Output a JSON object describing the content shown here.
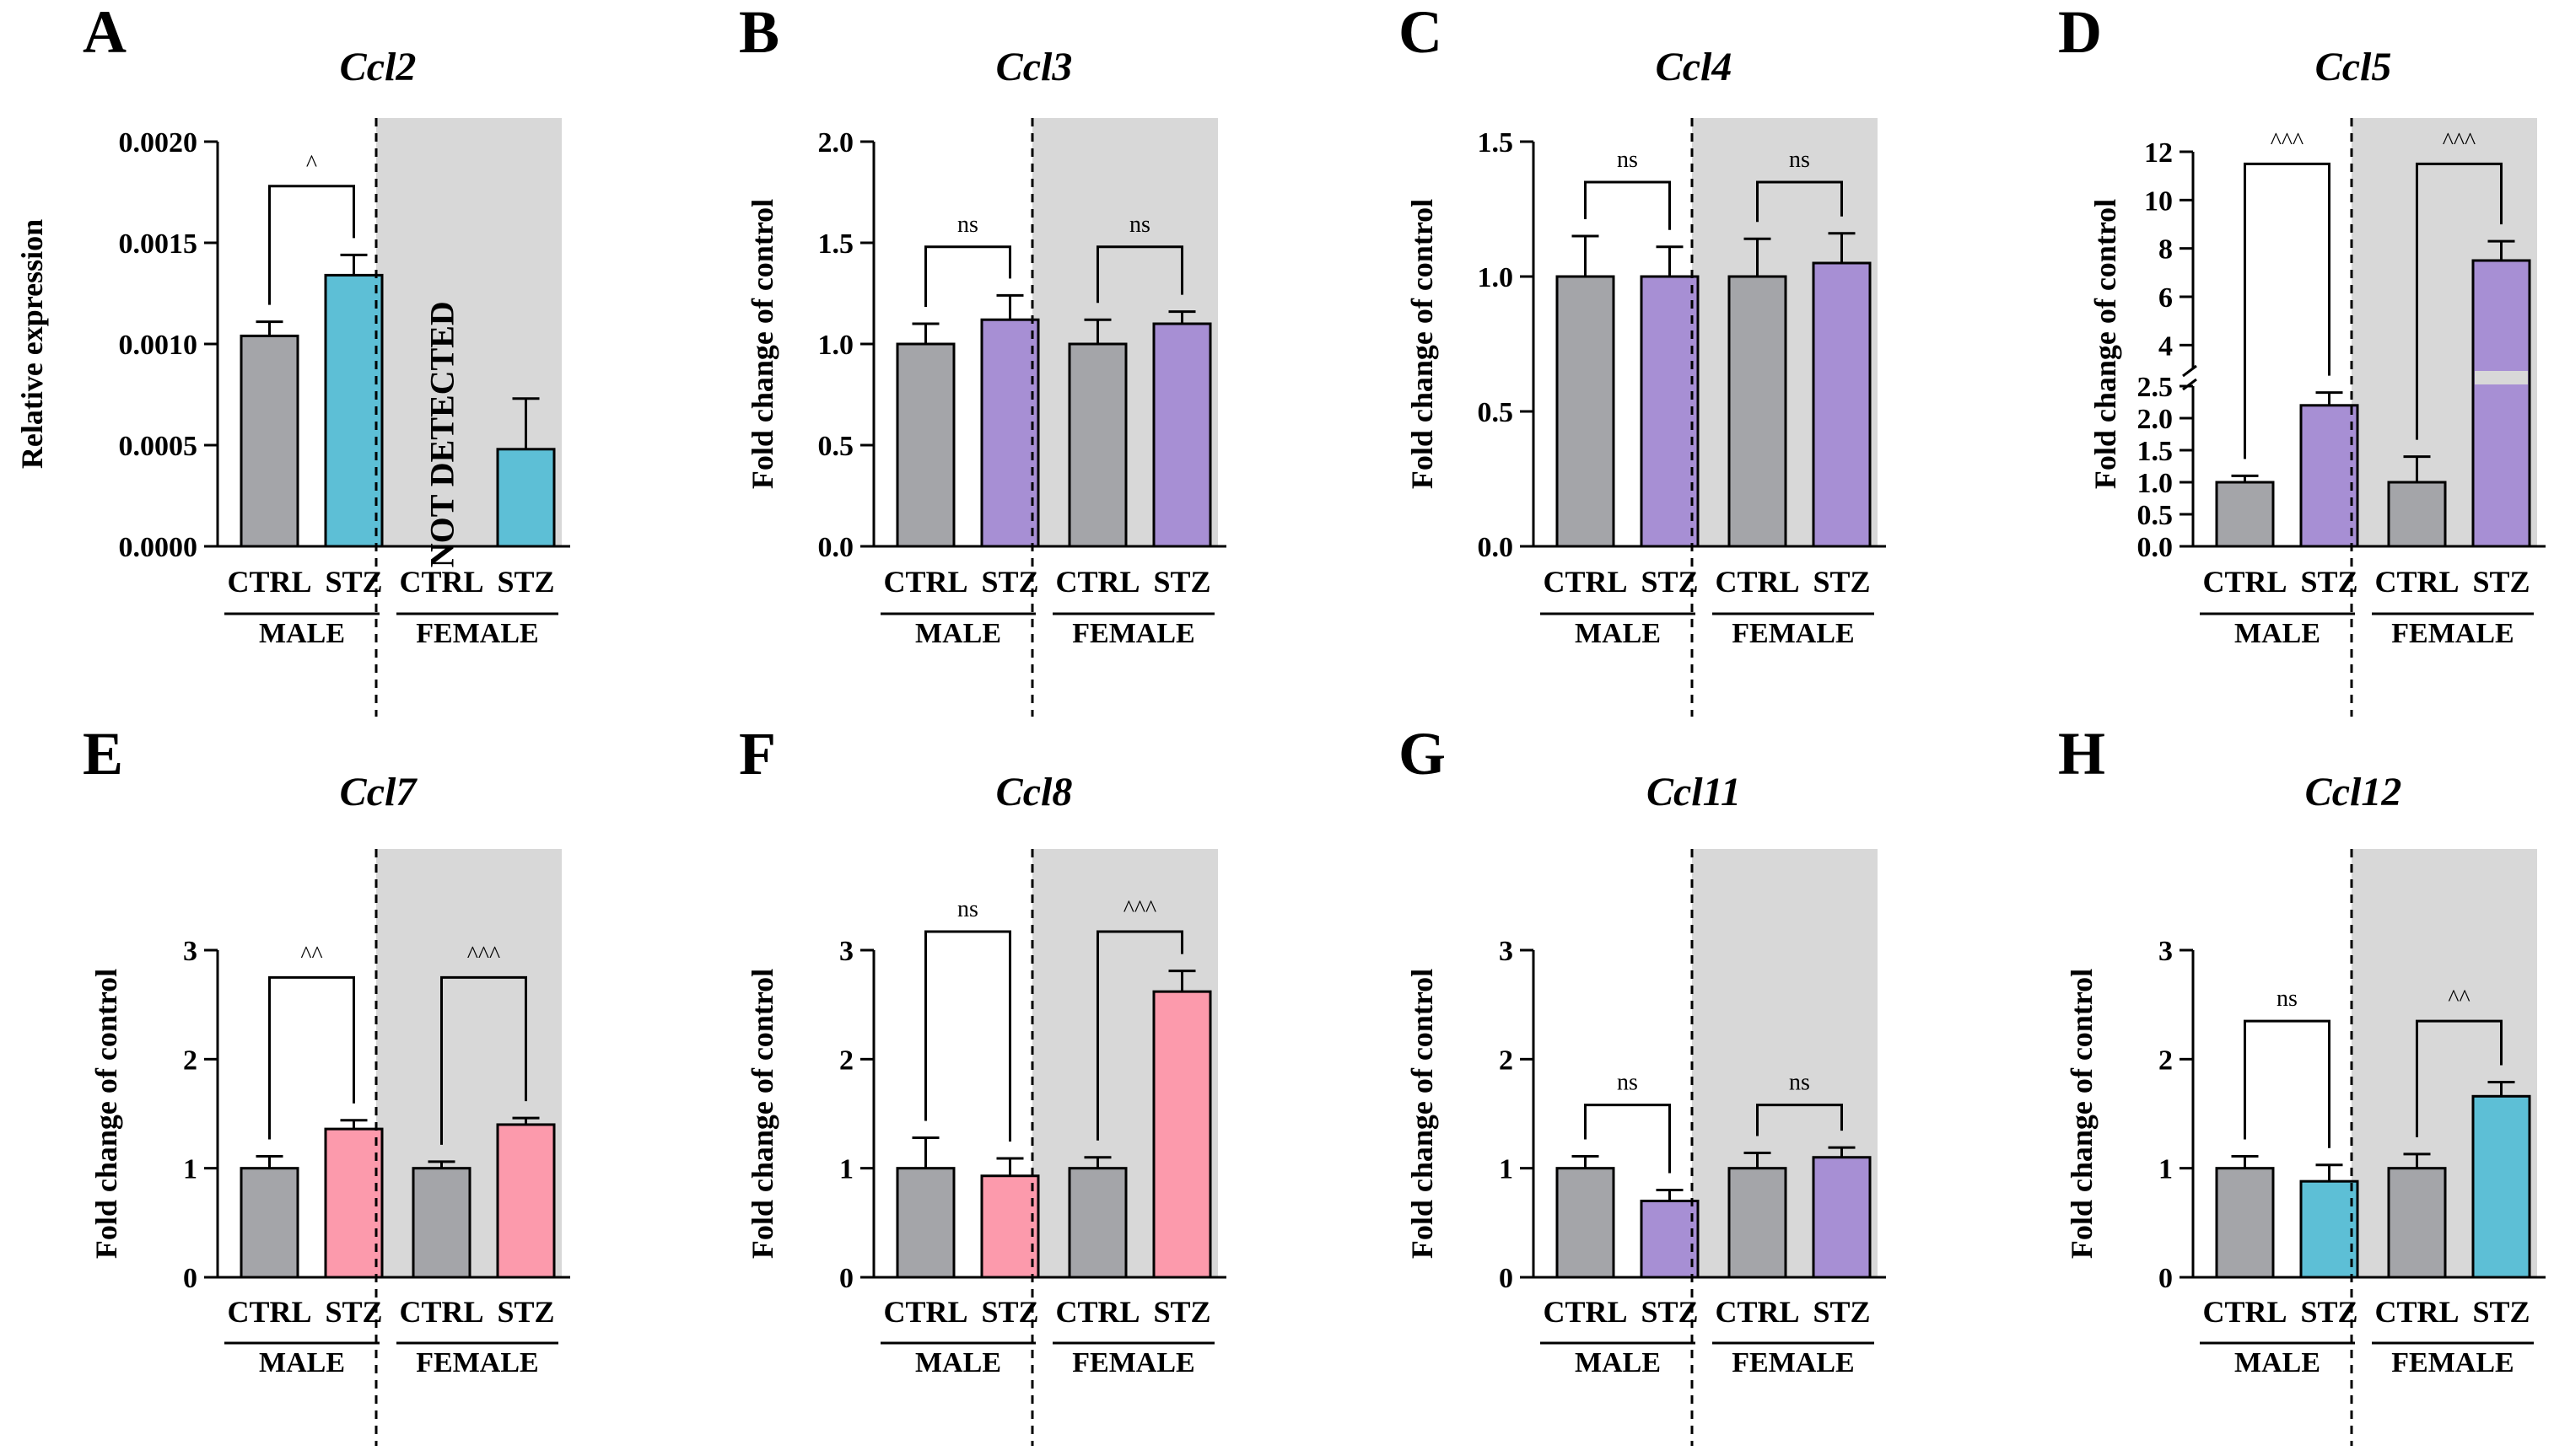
{
  "figure": {
    "colors": {
      "ctrl": "#a4a5a9",
      "cyan": "#5dbfd6",
      "purple": "#a78fd4",
      "pink": "#fc9aac",
      "shade": "#d8d8d8"
    }
  },
  "chart_data": [
    {
      "panel": "A",
      "title": "Ccl2",
      "type": "bar",
      "ylabel": "Relative expression",
      "ylim": [
        0,
        0.002
      ],
      "yticks": [
        "0.0000",
        "0.0005",
        "0.0010",
        "0.0015",
        "0.0020"
      ],
      "categories": [
        "CTRL",
        "STZ",
        "CTRL",
        "STZ"
      ],
      "groups": [
        "MALE",
        "FEMALE"
      ],
      "values": [
        0.00104,
        0.00134,
        null,
        0.00048
      ],
      "errors": [
        7e-05,
        0.0001,
        null,
        0.00025
      ],
      "bar_colors": [
        "ctrl",
        "cyan",
        "ctrl",
        "cyan"
      ],
      "annotation": "NOT DETECTED",
      "comparisons": [
        {
          "label": "^",
          "pair": [
            0,
            1
          ],
          "level": 0.00178
        }
      ]
    },
    {
      "panel": "B",
      "title": "Ccl3",
      "type": "bar",
      "ylabel": "Fold change of control",
      "ylim": [
        0,
        2.0
      ],
      "yticks": [
        "0.0",
        "0.5",
        "1.0",
        "1.5",
        "2.0"
      ],
      "categories": [
        "CTRL",
        "STZ",
        "CTRL",
        "STZ"
      ],
      "groups": [
        "MALE",
        "FEMALE"
      ],
      "values": [
        1.0,
        1.12,
        1.0,
        1.1
      ],
      "errors": [
        0.1,
        0.12,
        0.12,
        0.06
      ],
      "bar_colors": [
        "ctrl",
        "purple",
        "ctrl",
        "purple"
      ],
      "comparisons": [
        {
          "label": "ns",
          "pair": [
            0,
            1
          ],
          "level": 1.48
        },
        {
          "label": "ns",
          "pair": [
            2,
            3
          ],
          "level": 1.48
        }
      ]
    },
    {
      "panel": "C",
      "title": "Ccl4",
      "type": "bar",
      "ylabel": "Fold change of control",
      "ylim": [
        0,
        1.5
      ],
      "yticks": [
        "0.0",
        "0.5",
        "1.0",
        "1.5"
      ],
      "categories": [
        "CTRL",
        "STZ",
        "CTRL",
        "STZ"
      ],
      "groups": [
        "MALE",
        "FEMALE"
      ],
      "values": [
        1.0,
        1.0,
        1.0,
        1.05
      ],
      "errors": [
        0.15,
        0.11,
        0.14,
        0.11
      ],
      "bar_colors": [
        "ctrl",
        "purple",
        "ctrl",
        "purple"
      ],
      "comparisons": [
        {
          "label": "ns",
          "pair": [
            0,
            1
          ],
          "level": 1.35
        },
        {
          "label": "ns",
          "pair": [
            2,
            3
          ],
          "level": 1.35
        }
      ]
    },
    {
      "panel": "D",
      "title": "Ccl5",
      "type": "bar",
      "ylabel": "Fold change of control",
      "axis_break": {
        "lower": [
          0,
          2.5
        ],
        "upper": [
          3,
          12
        ]
      },
      "yticks": [
        "0.0",
        "0.5",
        "1.0",
        "1.5",
        "2.0",
        "2.5",
        "4",
        "6",
        "8",
        "10",
        "12"
      ],
      "categories": [
        "CTRL",
        "STZ",
        "CTRL",
        "STZ"
      ],
      "groups": [
        "MALE",
        "FEMALE"
      ],
      "values": [
        1.0,
        2.2,
        1.0,
        7.5
      ],
      "errors": [
        0.1,
        0.2,
        0.4,
        0.8
      ],
      "bar_colors": [
        "ctrl",
        "purple",
        "ctrl",
        "purple"
      ],
      "comparisons": [
        {
          "label": "^^^",
          "pair": [
            0,
            1
          ],
          "level": 11.5
        },
        {
          "label": "^^^",
          "pair": [
            2,
            3
          ],
          "level": 11.5
        }
      ]
    },
    {
      "panel": "E",
      "title": "Ccl7",
      "type": "bar",
      "ylabel": "Fold change of control",
      "ylim": [
        0,
        3
      ],
      "yticks": [
        "0",
        "1",
        "2",
        "3"
      ],
      "categories": [
        "CTRL",
        "STZ",
        "CTRL",
        "STZ"
      ],
      "groups": [
        "MALE",
        "FEMALE"
      ],
      "values": [
        1.0,
        1.36,
        1.0,
        1.4
      ],
      "errors": [
        0.11,
        0.08,
        0.06,
        0.06
      ],
      "bar_colors": [
        "ctrl",
        "pink",
        "ctrl",
        "pink"
      ],
      "comparisons": [
        {
          "label": "^^",
          "pair": [
            0,
            1
          ],
          "level": 2.75
        },
        {
          "label": "^^^",
          "pair": [
            2,
            3
          ],
          "level": 2.75
        }
      ]
    },
    {
      "panel": "F",
      "title": "Ccl8",
      "type": "bar",
      "ylabel": "Fold change of control",
      "ylim": [
        0,
        3
      ],
      "yticks": [
        "0",
        "1",
        "2",
        "3"
      ],
      "categories": [
        "CTRL",
        "STZ",
        "CTRL",
        "STZ"
      ],
      "groups": [
        "MALE",
        "FEMALE"
      ],
      "values": [
        1.0,
        0.93,
        1.0,
        2.62
      ],
      "errors": [
        0.28,
        0.16,
        0.1,
        0.19
      ],
      "bar_colors": [
        "ctrl",
        "pink",
        "ctrl",
        "pink"
      ],
      "comparisons": [
        {
          "label": "ns",
          "pair": [
            0,
            1
          ],
          "level": 3.17
        },
        {
          "label": "^^^",
          "pair": [
            2,
            3
          ],
          "level": 3.17
        }
      ]
    },
    {
      "panel": "G",
      "title": "Ccl11",
      "type": "bar",
      "ylabel": "Fold change of control",
      "ylim": [
        0,
        3
      ],
      "yticks": [
        "0",
        "1",
        "2",
        "3"
      ],
      "categories": [
        "CTRL",
        "STZ",
        "CTRL",
        "STZ"
      ],
      "groups": [
        "MALE",
        "FEMALE"
      ],
      "values": [
        1.0,
        0.7,
        1.0,
        1.1
      ],
      "errors": [
        0.11,
        0.1,
        0.14,
        0.09
      ],
      "bar_colors": [
        "ctrl",
        "purple",
        "ctrl",
        "purple"
      ],
      "comparisons": [
        {
          "label": "ns",
          "pair": [
            0,
            1
          ],
          "level": 1.58
        },
        {
          "label": "ns",
          "pair": [
            2,
            3
          ],
          "level": 1.58
        }
      ]
    },
    {
      "panel": "H",
      "title": "Ccl12",
      "type": "bar",
      "ylabel": "Fold change of control",
      "ylim": [
        0,
        3
      ],
      "yticks": [
        "0",
        "1",
        "2",
        "3"
      ],
      "categories": [
        "CTRL",
        "STZ",
        "CTRL",
        "STZ"
      ],
      "groups": [
        "MALE",
        "FEMALE"
      ],
      "values": [
        1.0,
        0.88,
        1.0,
        1.66
      ],
      "errors": [
        0.11,
        0.15,
        0.13,
        0.13
      ],
      "bar_colors": [
        "ctrl",
        "cyan",
        "ctrl",
        "cyan"
      ],
      "comparisons": [
        {
          "label": "ns",
          "pair": [
            0,
            1
          ],
          "level": 2.35
        },
        {
          "label": "^^",
          "pair": [
            2,
            3
          ],
          "level": 2.35
        }
      ]
    }
  ]
}
